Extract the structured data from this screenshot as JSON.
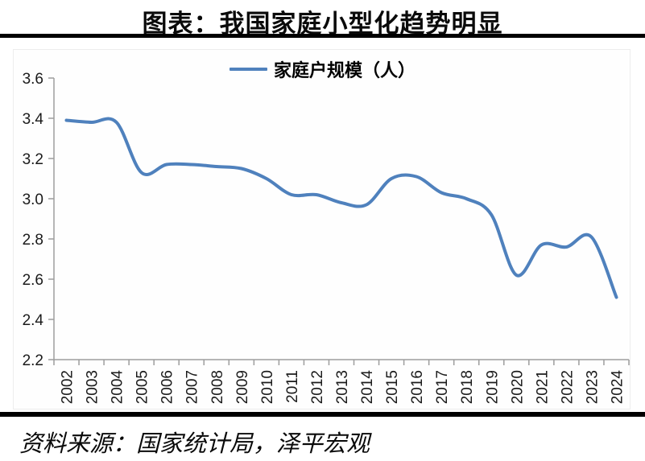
{
  "title": "图表：我国家庭小型化趋势明显",
  "source_note": "资料来源：国家统计局，泽平宏观",
  "colors": {
    "line": "#4f81bd",
    "axis": "#9d9d9d",
    "text": "#1a1a1a",
    "rule": "#000000"
  },
  "chart_data": {
    "type": "line",
    "title": "图表：我国家庭小型化趋势明显",
    "smooth": true,
    "grid": false,
    "legend_position": "top",
    "legend": [
      "家庭户规模（人）"
    ],
    "categories": [
      "2002",
      "2003",
      "2004",
      "2005",
      "2006",
      "2007",
      "2008",
      "2009",
      "2010",
      "2011",
      "2012",
      "2013",
      "2014",
      "2015",
      "2016",
      "2017",
      "2018",
      "2019",
      "2020",
      "2021",
      "2022",
      "2023",
      "2024"
    ],
    "series": [
      {
        "name": "家庭户规模（人）",
        "values": [
          3.39,
          3.38,
          3.38,
          3.13,
          3.17,
          3.17,
          3.16,
          3.15,
          3.1,
          3.02,
          3.02,
          2.98,
          2.97,
          3.1,
          3.11,
          3.03,
          3.0,
          2.92,
          2.62,
          2.77,
          2.76,
          2.81,
          2.51
        ]
      }
    ],
    "xlabel": "",
    "ylabel": "",
    "ylim": [
      2.2,
      3.6
    ],
    "ytick_step": 0.2,
    "ytick_format_decimals": 1
  }
}
